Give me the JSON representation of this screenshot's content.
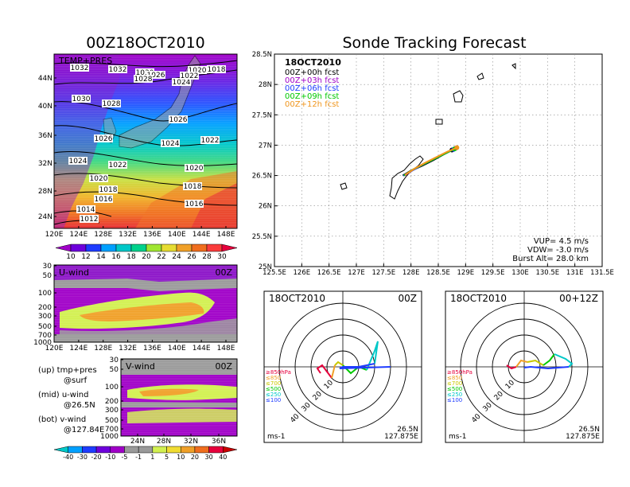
{
  "main_title": "00Z18OCT2010",
  "forecast_title": "Sonde Tracking Forecast",
  "panels": {
    "temp": {
      "label": "TEMP+PRES",
      "x_ticks": [
        "120E",
        "124E",
        "128E",
        "132E",
        "136E",
        "140E",
        "144E",
        "148E"
      ],
      "y_ticks": [
        "24N",
        "28N",
        "32N",
        "36N",
        "40N",
        "44N"
      ],
      "colorbar_ticks": [
        "10",
        "12",
        "14",
        "16",
        "18",
        "20",
        "22",
        "24",
        "26",
        "28",
        "30"
      ],
      "colorbar_colors": [
        "#a000c8",
        "#6e00dc",
        "#1e3cff",
        "#00a0ff",
        "#00c8c8",
        "#00d28c",
        "#a0e632",
        "#e6dc32",
        "#f0a028",
        "#f06e1e",
        "#fa3c3c",
        "#e6003c"
      ],
      "isobar_labels": [
        "1032",
        "1032",
        "1030",
        "1026",
        "1020",
        "1018",
        "1028",
        "1024",
        "1022",
        "1030",
        "1028",
        "1026",
        "1026",
        "1024",
        "1022",
        "1024",
        "1022",
        "1020",
        "1020",
        "1018",
        "1018",
        "1016",
        "1016",
        "1014",
        "1012"
      ]
    },
    "uwind": {
      "label": "U-wind",
      "time": "00Z",
      "x_ticks": [
        "120E",
        "124E",
        "128E",
        "132E",
        "136E",
        "140E",
        "144E",
        "148E"
      ],
      "y_ticks": [
        "30",
        "50",
        "100",
        "200",
        "300",
        "500",
        "700",
        "1000"
      ]
    },
    "vwind": {
      "label": "V-wind",
      "time": "00Z",
      "x_ticks": [
        "24N",
        "28N",
        "32N",
        "36N"
      ],
      "y_ticks": [
        "30",
        "50",
        "100",
        "200",
        "300",
        "500",
        "700",
        "1000"
      ],
      "colorbar_ticks": [
        "-40",
        "-30",
        "-20",
        "-10",
        "-5",
        "-1",
        "1",
        "5",
        "10",
        "20",
        "30",
        "40"
      ],
      "colorbar_colors": [
        "#00c8c8",
        "#00a0ff",
        "#1e3cff",
        "#6e00dc",
        "#a000c8",
        "#9a9a9a",
        "#9a9a9a",
        "#d2f050",
        "#f0dc32",
        "#f0a028",
        "#f06e1e",
        "#e6003c",
        "#c80000"
      ]
    },
    "legend_notes": [
      {
        "head": "(up) tmp+pres",
        "sub": "@surf"
      },
      {
        "head": "(mid) u-wind",
        "sub": "@26.5N"
      },
      {
        "head": "(bot) v-wind",
        "sub": "@127.84E"
      }
    ],
    "track": {
      "date": "18OCT2010",
      "legend": [
        {
          "label": "00Z+00h fcst",
          "color": "#000000"
        },
        {
          "label": "00Z+03h fcst",
          "color": "#a000c8"
        },
        {
          "label": "00Z+06h fcst",
          "color": "#1e3cff"
        },
        {
          "label": "00Z+09h fcst",
          "color": "#00c800"
        },
        {
          "label": "00Z+12h fcst",
          "color": "#f0961e"
        }
      ],
      "x_ticks": [
        "125.5E",
        "126E",
        "126.5E",
        "127E",
        "127.5E",
        "128E",
        "128.5E",
        "129E",
        "129.5E",
        "130E",
        "130.5E",
        "131E",
        "131.5E"
      ],
      "y_ticks": [
        "25N",
        "25.5N",
        "26N",
        "26.5N",
        "27N",
        "27.5N",
        "28N",
        "28.5N"
      ],
      "info": [
        "VUP= 4.5 m/s",
        "VDW= -3.0 m/s",
        "Burst Alt= 28.0 km"
      ]
    },
    "hodo_left": {
      "date": "18OCT2010",
      "time": "00Z",
      "unit": "ms-1",
      "lat": "26.5N",
      "lon": "127.875E",
      "ring_labels": [
        "10",
        "20",
        "30",
        "40"
      ],
      "level_labels": [
        {
          "text": "≥850hPa",
          "color": "#e6003c"
        },
        {
          "text": "≤850",
          "color": "#f0a028"
        },
        {
          "text": "≤700",
          "color": "#c8c800"
        },
        {
          "text": "≤500",
          "color": "#00c800"
        },
        {
          "text": "≤250",
          "color": "#00c8c8"
        },
        {
          "text": "≤100",
          "color": "#1e3cff"
        }
      ]
    },
    "hodo_right": {
      "date": "18OCT2010",
      "time": "00+12Z",
      "unit": "ms-1",
      "lat": "26.5N",
      "lon": "127.875E",
      "ring_labels": [
        "10",
        "20",
        "30",
        "40"
      ],
      "level_labels": [
        {
          "text": "≥850hPa",
          "color": "#e6003c"
        },
        {
          "text": "≤850",
          "color": "#f0a028"
        },
        {
          "text": "≤700",
          "color": "#c8c800"
        },
        {
          "text": "≤500",
          "color": "#00c800"
        },
        {
          "text": "≤250",
          "color": "#00c8c8"
        },
        {
          "text": "≤100",
          "color": "#1e3cff"
        }
      ]
    }
  },
  "chart_data": [
    {
      "type": "heatmap",
      "title": "TEMP+PRES",
      "variable": "surface temperature (shaded) with sea-level pressure isobars",
      "x_range": [
        "120E",
        "149E"
      ],
      "y_range": [
        "22N",
        "47N"
      ],
      "color_levels": [
        10,
        12,
        14,
        16,
        18,
        20,
        22,
        24,
        26,
        28,
        30
      ],
      "isobars_hPa": [
        1032,
        1030,
        1028,
        1026,
        1024,
        1022,
        1020,
        1018,
        1016,
        1014,
        1012
      ]
    },
    {
      "type": "heatmap",
      "title": "U-wind",
      "x_range": [
        "120E",
        "149E"
      ],
      "y_levels_hPa": [
        30,
        50,
        100,
        200,
        300,
        500,
        700,
        1000
      ],
      "color_levels": [
        -40,
        -30,
        -20,
        -10,
        -5,
        -1,
        1,
        5,
        10,
        20,
        30,
        40
      ]
    },
    {
      "type": "heatmap",
      "title": "V-wind",
      "x_range": [
        "22N",
        "38N"
      ],
      "y_levels_hPa": [
        30,
        50,
        100,
        200,
        300,
        500,
        700,
        1000
      ],
      "color_levels": [
        -40,
        -30,
        -20,
        -10,
        -5,
        -1,
        1,
        5,
        10,
        20,
        30,
        40
      ]
    },
    {
      "type": "line",
      "title": "Sonde Tracking Forecast",
      "xlim": [
        125.5,
        131.5
      ],
      "ylim": [
        25,
        28.5
      ],
      "series": [
        {
          "name": "00Z+00h fcst",
          "color": "#000000",
          "x": [
            127.85,
            128.0,
            128.2,
            128.4,
            128.6,
            128.75
          ],
          "y": [
            26.5,
            26.58,
            26.66,
            26.75,
            26.85,
            26.92
          ]
        },
        {
          "name": "00Z+03h fcst",
          "color": "#a000c8",
          "x": [
            127.88,
            128.05,
            128.25,
            128.45,
            128.65,
            128.82
          ],
          "y": [
            26.5,
            26.6,
            26.7,
            26.79,
            26.88,
            26.95
          ]
        },
        {
          "name": "00Z+06h fcst",
          "color": "#1e3cff",
          "x": [
            127.86,
            128.02,
            128.22,
            128.42,
            128.62,
            128.78
          ],
          "y": [
            26.5,
            26.58,
            26.68,
            26.77,
            26.86,
            26.93
          ]
        },
        {
          "name": "00Z+09h fcst",
          "color": "#00c800",
          "x": [
            127.87,
            128.04,
            128.24,
            128.44,
            128.64,
            128.8
          ],
          "y": [
            26.5,
            26.6,
            26.69,
            26.78,
            26.87,
            26.94
          ]
        },
        {
          "name": "00Z+12h fcst",
          "color": "#f0961e",
          "x": [
            127.89,
            128.06,
            128.26,
            128.46,
            128.66,
            128.84
          ],
          "y": [
            26.51,
            26.61,
            26.71,
            26.8,
            26.89,
            26.96
          ]
        }
      ]
    }
  ]
}
